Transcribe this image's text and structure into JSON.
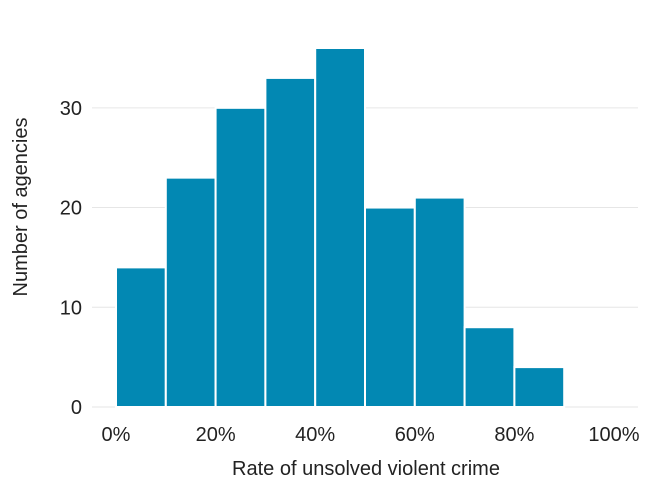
{
  "chart_data": {
    "type": "bar",
    "title": "",
    "xlabel": "Rate of unsolved violent crime",
    "ylabel": "Number of agencies",
    "bins": [
      {
        "start": 0,
        "end": 10,
        "value": 14
      },
      {
        "start": 10,
        "end": 20,
        "value": 23
      },
      {
        "start": 20,
        "end": 30,
        "value": 30
      },
      {
        "start": 30,
        "end": 40,
        "value": 33
      },
      {
        "start": 40,
        "end": 50,
        "value": 36
      },
      {
        "start": 50,
        "end": 60,
        "value": 20
      },
      {
        "start": 60,
        "end": 70,
        "value": 21
      },
      {
        "start": 70,
        "end": 80,
        "value": 8
      },
      {
        "start": 80,
        "end": 90,
        "value": 4
      }
    ],
    "xlim": [
      0,
      100
    ],
    "ylim": [
      0,
      36
    ],
    "x_ticks": [
      0,
      20,
      40,
      60,
      80,
      100
    ],
    "x_tick_labels": [
      "0%",
      "20%",
      "40%",
      "60%",
      "80%",
      "100%"
    ],
    "y_ticks": [
      0,
      10,
      20,
      30
    ],
    "y_tick_labels": [
      "0",
      "10",
      "20",
      "30"
    ],
    "grid": true,
    "colors": {
      "bar": "#0288b3",
      "grid": "#e6e6e6",
      "text": "#222222"
    }
  }
}
